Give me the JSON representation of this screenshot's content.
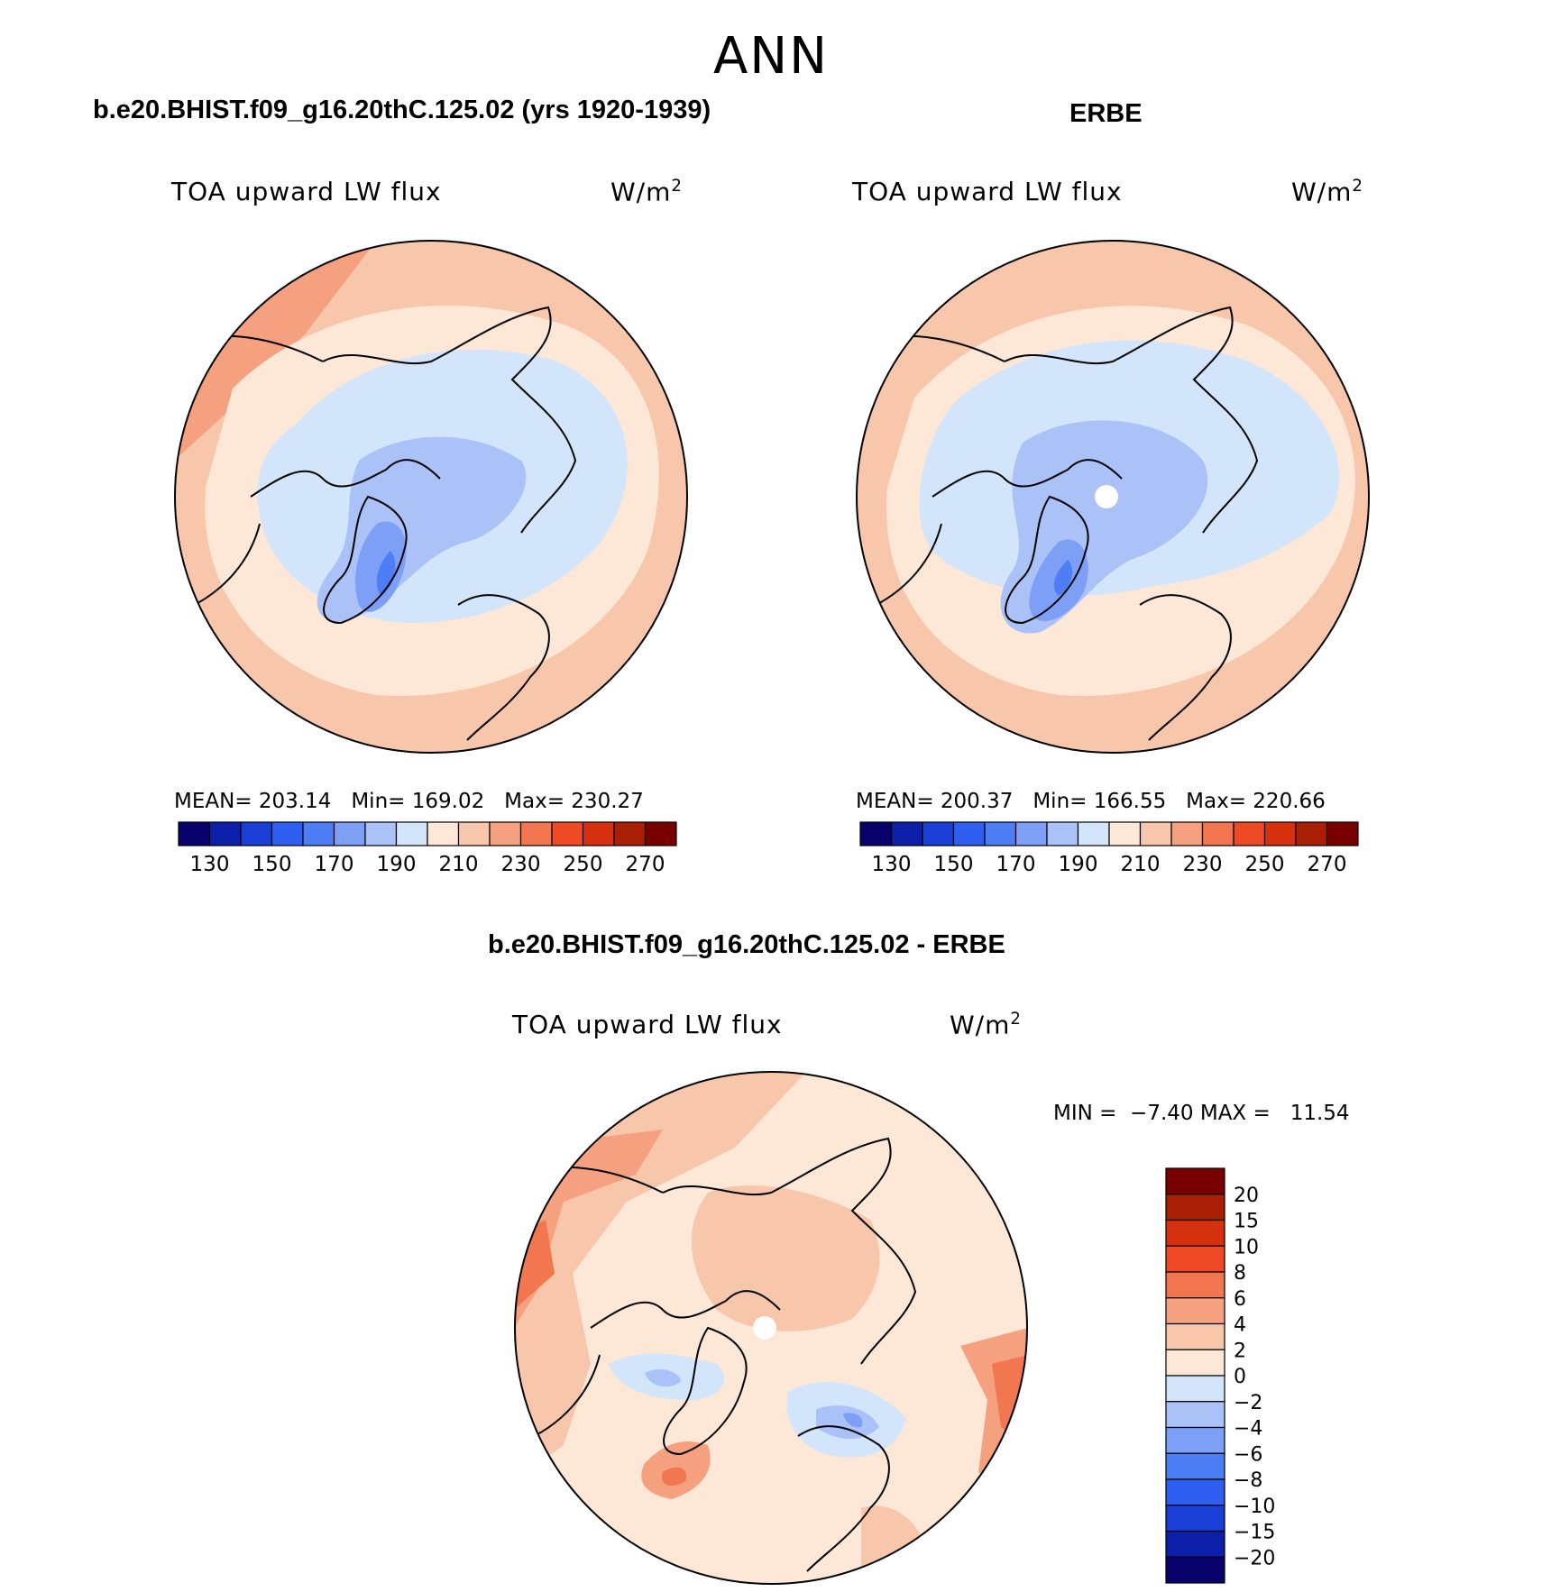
{
  "figure_title": "ANN",
  "panels": [
    {
      "title": "b.e20.BHIST.f09_g16.20thC.125.02 (yrs 1920-1939)",
      "variable": "TOA upward LW flux",
      "units_base": "W/m",
      "units_exp": "2",
      "stats": {
        "mean_label": "MEAN=",
        "mean": "203.14",
        "min_label": "Min=",
        "min": "169.02",
        "max_label": "Max=",
        "max": "230.27"
      }
    },
    {
      "title": "ERBE",
      "variable": "TOA upward LW flux",
      "units_base": "W/m",
      "units_exp": "2",
      "stats": {
        "mean_label": "MEAN=",
        "mean": "200.37",
        "min_label": "Min=",
        "min": "166.55",
        "max_label": "Max=",
        "max": "220.66"
      }
    },
    {
      "title": "b.e20.BHIST.f09_g16.20thC.125.02 - ERBE",
      "variable": "TOA upward LW flux",
      "units_base": "W/m",
      "units_exp": "2",
      "minmax": {
        "min_label": "MIN =",
        "min": "−7.40",
        "max_label": "MAX =",
        "max": "11.54"
      }
    }
  ],
  "abs_colorbar": {
    "colors": [
      "#08006b",
      "#0b1fa8",
      "#1a3fd6",
      "#2f5ff0",
      "#4e7ef5",
      "#7d9ff5",
      "#aac2f7",
      "#d3e5fb",
      "#fde7d6",
      "#f8c6aa",
      "#f5a07f",
      "#f2764f",
      "#ee4a25",
      "#d6310f",
      "#a91f05",
      "#7a0000"
    ],
    "tick_labels": [
      "130",
      "150",
      "170",
      "190",
      "210",
      "230",
      "250",
      "270"
    ]
  },
  "diff_colorbar": {
    "colors": [
      "#7a0000",
      "#a91f05",
      "#d6310f",
      "#ee4a25",
      "#f2764f",
      "#f5a07f",
      "#f8c6aa",
      "#fde7d6",
      "#d3e5fb",
      "#aac2f7",
      "#7d9ff5",
      "#4e7ef5",
      "#2f5ff0",
      "#1a3fd6",
      "#0b1fa8",
      "#08006b"
    ],
    "tick_labels": [
      "20",
      "15",
      "10",
      "8",
      "6",
      "4",
      "2",
      "0",
      "−2",
      "−4",
      "−6",
      "−8",
      "−10",
      "−15",
      "−20"
    ]
  }
}
